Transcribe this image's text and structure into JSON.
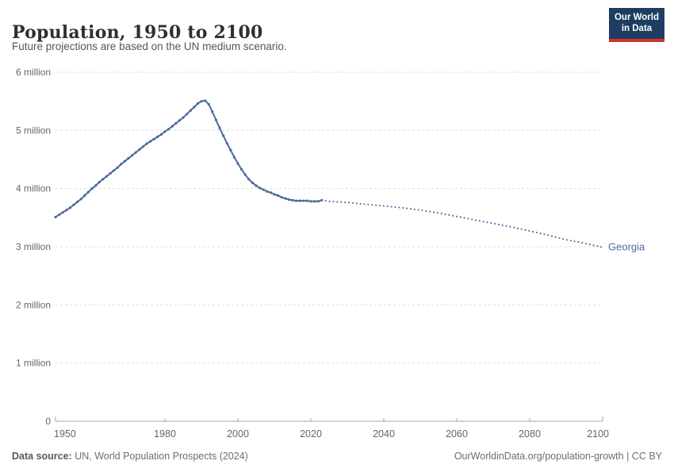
{
  "header": {
    "title": "Population, 1950 to 2100",
    "subtitle": "Future projections are based on the UN medium scenario."
  },
  "logo": {
    "line1": "Our World",
    "line2": "in Data"
  },
  "footer": {
    "source_label": "Data source:",
    "source_text": " UN, World Population Prospects (2024)",
    "link_text": "OurWorldinData.org/population-growth | CC BY"
  },
  "chart_data": {
    "type": "line",
    "title": "Population, 1950 to 2100",
    "subtitle": "Future projections are based on the UN medium scenario.",
    "entity": "Georgia",
    "end_label": "Georgia",
    "unit": "people (millions)",
    "line_color": "#4C6A9C",
    "grid": true,
    "legend_position": "end-of-line-label",
    "xlim": [
      1950,
      2100
    ],
    "ylim_millions": [
      0,
      6
    ],
    "xticks": [
      1950,
      1980,
      2000,
      2020,
      2040,
      2060,
      2080,
      2100
    ],
    "yticks": [
      {
        "value": 0,
        "label": "0"
      },
      {
        "value": 1,
        "label": "1 million"
      },
      {
        "value": 2,
        "label": "2 million"
      },
      {
        "value": 3,
        "label": "3 million"
      },
      {
        "value": 4,
        "label": "4 million"
      },
      {
        "value": 5,
        "label": "5 million"
      },
      {
        "value": 6,
        "label": "6 million"
      }
    ],
    "series": [
      {
        "name": "Georgia (estimates)",
        "style": "solid",
        "markers": true,
        "years": [
          1950,
          1951,
          1952,
          1953,
          1954,
          1955,
          1956,
          1957,
          1958,
          1959,
          1960,
          1961,
          1962,
          1963,
          1964,
          1965,
          1966,
          1967,
          1968,
          1969,
          1970,
          1971,
          1972,
          1973,
          1974,
          1975,
          1976,
          1977,
          1978,
          1979,
          1980,
          1981,
          1982,
          1983,
          1984,
          1985,
          1986,
          1987,
          1988,
          1989,
          1990,
          1991,
          1992,
          1993,
          1994,
          1995,
          1996,
          1997,
          1998,
          1999,
          2000,
          2001,
          2002,
          2003,
          2004,
          2005,
          2006,
          2007,
          2008,
          2009,
          2010,
          2011,
          2012,
          2013,
          2014,
          2015,
          2016,
          2017,
          2018,
          2019,
          2020,
          2021,
          2022,
          2023
        ],
        "values_millions": [
          3.51,
          3.55,
          3.59,
          3.63,
          3.67,
          3.72,
          3.77,
          3.82,
          3.88,
          3.94,
          4.0,
          4.05,
          4.11,
          4.16,
          4.21,
          4.26,
          4.31,
          4.36,
          4.42,
          4.47,
          4.52,
          4.57,
          4.62,
          4.67,
          4.72,
          4.77,
          4.81,
          4.85,
          4.89,
          4.93,
          4.98,
          5.02,
          5.07,
          5.12,
          5.17,
          5.22,
          5.28,
          5.34,
          5.4,
          5.46,
          5.5,
          5.51,
          5.45,
          5.32,
          5.18,
          5.04,
          4.91,
          4.78,
          4.66,
          4.54,
          4.43,
          4.33,
          4.24,
          4.16,
          4.1,
          4.05,
          4.01,
          3.98,
          3.95,
          3.93,
          3.9,
          3.88,
          3.85,
          3.83,
          3.81,
          3.8,
          3.79,
          3.79,
          3.79,
          3.79,
          3.78,
          3.78,
          3.78,
          3.8
        ]
      },
      {
        "name": "Georgia (UN medium projection)",
        "style": "dotted",
        "markers": false,
        "years": [
          2023,
          2025,
          2030,
          2035,
          2040,
          2045,
          2050,
          2055,
          2060,
          2065,
          2070,
          2075,
          2080,
          2085,
          2090,
          2095,
          2100
        ],
        "values_millions": [
          3.8,
          3.78,
          3.76,
          3.73,
          3.7,
          3.67,
          3.63,
          3.58,
          3.52,
          3.46,
          3.4,
          3.34,
          3.27,
          3.2,
          3.12,
          3.06,
          2.99
        ]
      }
    ]
  }
}
